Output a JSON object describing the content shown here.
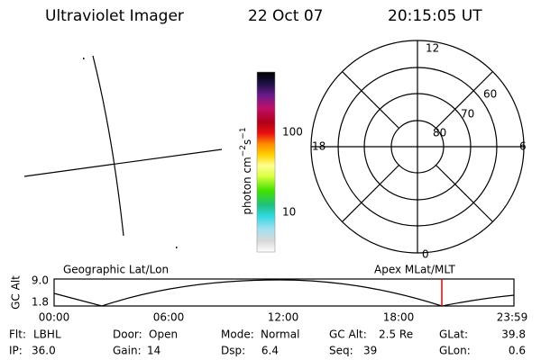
{
  "header": {
    "title": "Ultraviolet Imager",
    "date": "22 Oct 07",
    "time": "20:15:05 UT"
  },
  "colorbar": {
    "label": [
      "photon cm",
      "−2",
      "s",
      "−1"
    ],
    "ticks": [
      "100",
      "10"
    ]
  },
  "polar": {
    "top": "12",
    "bottom": "0",
    "left": "18",
    "right": "6",
    "lat_labels": [
      "80",
      "70",
      "60"
    ]
  },
  "orbit": {
    "y_label": "GC Alt",
    "y_ticks": [
      "9.0",
      "1.8"
    ],
    "left_label": "Geographic Lat/Lon",
    "right_label": "Apex MLat/MLT",
    "x_ticks": [
      "00:00",
      "06:00",
      "12:00",
      "18:00",
      "23:59"
    ]
  },
  "info": [
    [
      [
        "Flt:",
        "LBHL"
      ],
      [
        "Door:",
        "Open"
      ],
      [
        "Mode:",
        "Normal"
      ],
      [
        "GC Alt:",
        "2.5 Re"
      ],
      [
        "GLat:",
        "39.8"
      ]
    ],
    [
      [
        "IP:",
        "36.0"
      ],
      [
        "Gain:",
        "14"
      ],
      [
        "Dsp:",
        "6.4"
      ],
      [
        "Seq:",
        "39"
      ],
      [
        "GLon:",
        "0.6"
      ]
    ]
  ]
}
